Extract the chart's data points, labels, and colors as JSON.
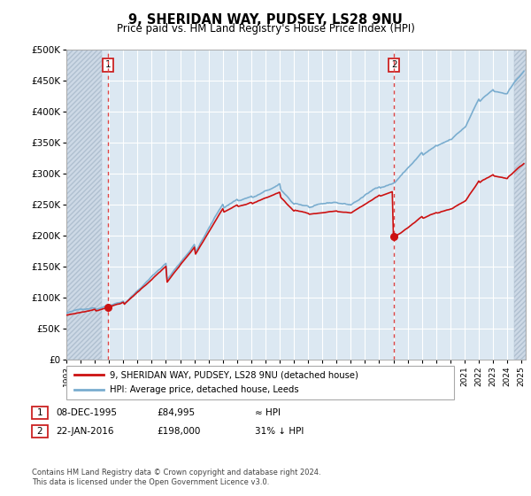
{
  "title": "9, SHERIDAN WAY, PUDSEY, LS28 9NU",
  "subtitle": "Price paid vs. HM Land Registry's House Price Index (HPI)",
  "ylim": [
    0,
    500000
  ],
  "yticks": [
    0,
    50000,
    100000,
    150000,
    200000,
    250000,
    300000,
    350000,
    400000,
    450000,
    500000
  ],
  "ytick_labels": [
    "£0",
    "£50K",
    "£100K",
    "£150K",
    "£200K",
    "£250K",
    "£300K",
    "£350K",
    "£400K",
    "£450K",
    "£500K"
  ],
  "bg_color": "#dce8f2",
  "hatch_bg_color": "#cdd9e6",
  "grid_color": "#c8d4de",
  "sale1_x": 1995.92,
  "sale1_price": 84995,
  "sale2_x": 2016.04,
  "sale2_price": 198000,
  "hpi_line_color": "#7aadcf",
  "price_line_color": "#cc1111",
  "vline_color": "#dd4444",
  "legend_label1": "9, SHERIDAN WAY, PUDSEY, LS28 9NU (detached house)",
  "legend_label2": "HPI: Average price, detached house, Leeds",
  "table_row1": [
    "1",
    "08-DEC-1995",
    "£84,995",
    "≈ HPI"
  ],
  "table_row2": [
    "2",
    "22-JAN-2016",
    "£198,000",
    "31% ↓ HPI"
  ],
  "footnote": "Contains HM Land Registry data © Crown copyright and database right 2024.\nThis data is licensed under the Open Government Licence v3.0.",
  "xmin": 1993.0,
  "xmax": 2025.3,
  "hatch_left_end": 1995.5,
  "hatch_right_start": 2024.5
}
